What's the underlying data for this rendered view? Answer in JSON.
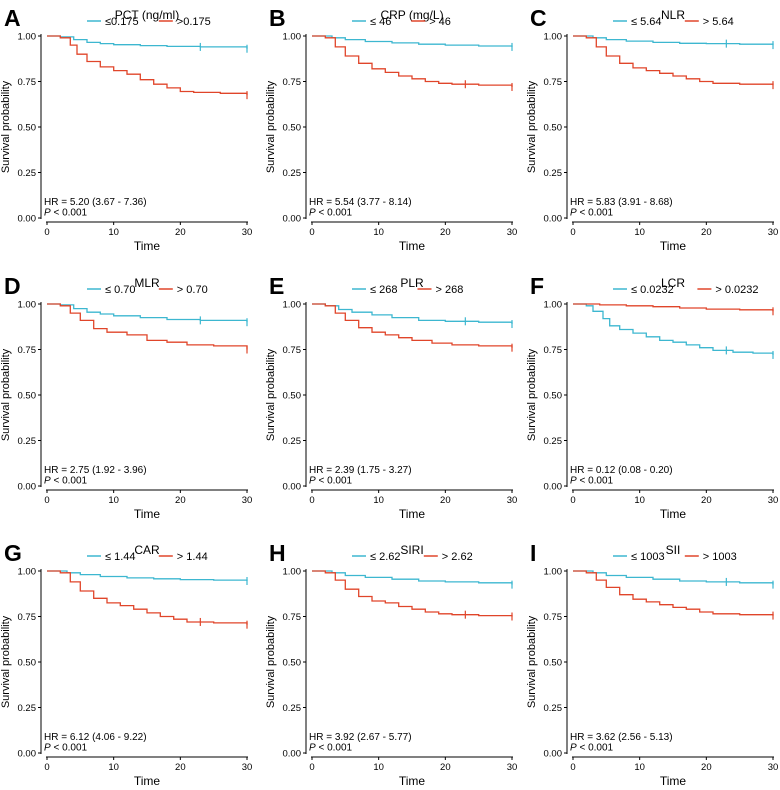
{
  "colors": {
    "low": "#3DB7D0",
    "high": "#E0452A"
  },
  "common": {
    "xlabel": "Time",
    "ylabel": "Survival probability",
    "xticks": [
      0,
      10,
      20,
      30
    ],
    "yticks": [
      "0.00",
      "0.25",
      "0.50",
      "0.75",
      "1.00"
    ],
    "p_letter": "P",
    "p_rest": " < 0.001"
  },
  "chart_data": [
    {
      "letter": "A",
      "type": "line",
      "title": "PCT (ng/ml)",
      "xlim": [
        0,
        30
      ],
      "ylim": [
        0,
        1
      ],
      "series": [
        {
          "name": "≤0.175",
          "color": "low",
          "points": [
            [
              0,
              1
            ],
            [
              2,
              0.995
            ],
            [
              4,
              0.98
            ],
            [
              6,
              0.965
            ],
            [
              8,
              0.958
            ],
            [
              10,
              0.952
            ],
            [
              14,
              0.947
            ],
            [
              18,
              0.943
            ],
            [
              23,
              0.94
            ],
            [
              30,
              0.93
            ]
          ],
          "censor": [
            23,
            30
          ]
        },
        {
          "name": ">0.175",
          "color": "high",
          "points": [
            [
              0,
              1
            ],
            [
              2,
              0.99
            ],
            [
              3.5,
              0.95
            ],
            [
              4.5,
              0.9
            ],
            [
              6,
              0.86
            ],
            [
              8,
              0.83
            ],
            [
              10,
              0.81
            ],
            [
              12,
              0.79
            ],
            [
              14,
              0.76
            ],
            [
              16,
              0.735
            ],
            [
              18,
              0.715
            ],
            [
              20,
              0.695
            ],
            [
              22,
              0.69
            ],
            [
              26,
              0.685
            ],
            [
              30,
              0.675
            ]
          ],
          "censor": [
            30
          ]
        }
      ],
      "annotation": "HR = 5.20 (3.67 -  7.36)"
    },
    {
      "letter": "B",
      "type": "line",
      "title": "CRP (mg/L)",
      "xlim": [
        0,
        30
      ],
      "ylim": [
        0,
        1
      ],
      "series": [
        {
          "name": "≤ 46",
          "color": "low",
          "points": [
            [
              0,
              1
            ],
            [
              3,
              0.99
            ],
            [
              5,
              0.98
            ],
            [
              8,
              0.97
            ],
            [
              12,
              0.962
            ],
            [
              16,
              0.955
            ],
            [
              20,
              0.95
            ],
            [
              25,
              0.945
            ],
            [
              30,
              0.94
            ]
          ],
          "censor": [
            30
          ]
        },
        {
          "name": "> 46",
          "color": "high",
          "points": [
            [
              0,
              1
            ],
            [
              2,
              0.99
            ],
            [
              3.5,
              0.94
            ],
            [
              5,
              0.89
            ],
            [
              7,
              0.85
            ],
            [
              9,
              0.82
            ],
            [
              11,
              0.8
            ],
            [
              13,
              0.78
            ],
            [
              15,
              0.765
            ],
            [
              17,
              0.75
            ],
            [
              19,
              0.74
            ],
            [
              21,
              0.735
            ],
            [
              25,
              0.73
            ],
            [
              30,
              0.72
            ]
          ],
          "censor": [
            23,
            30
          ]
        }
      ],
      "annotation": "HR = 5.54 (3.77 -  8.14)"
    },
    {
      "letter": "C",
      "type": "line",
      "title": "NLR",
      "xlim": [
        0,
        30
      ],
      "ylim": [
        0,
        1
      ],
      "series": [
        {
          "name": "≤ 5.64",
          "color": "low",
          "points": [
            [
              0,
              1
            ],
            [
              3,
              0.99
            ],
            [
              5,
              0.98
            ],
            [
              8,
              0.972
            ],
            [
              12,
              0.965
            ],
            [
              16,
              0.96
            ],
            [
              20,
              0.958
            ],
            [
              25,
              0.955
            ],
            [
              30,
              0.95
            ]
          ],
          "censor": [
            23,
            30
          ]
        },
        {
          "name": "> 5.64",
          "color": "high",
          "points": [
            [
              0,
              1
            ],
            [
              2,
              0.99
            ],
            [
              3.5,
              0.94
            ],
            [
              5,
              0.89
            ],
            [
              7,
              0.85
            ],
            [
              9,
              0.825
            ],
            [
              11,
              0.81
            ],
            [
              13,
              0.795
            ],
            [
              15,
              0.78
            ],
            [
              17,
              0.765
            ],
            [
              19,
              0.75
            ],
            [
              21,
              0.74
            ],
            [
              25,
              0.735
            ],
            [
              30,
              0.73
            ]
          ],
          "censor": [
            30
          ]
        }
      ],
      "annotation": "HR = 5.83 (3.91 -  8.68)"
    },
    {
      "letter": "D",
      "type": "line",
      "title": "MLR",
      "xlim": [
        0,
        30
      ],
      "ylim": [
        0,
        1
      ],
      "series": [
        {
          "name": "≤ 0.70",
          "color": "low",
          "points": [
            [
              0,
              1
            ],
            [
              2,
              0.995
            ],
            [
              4,
              0.975
            ],
            [
              6,
              0.955
            ],
            [
              8,
              0.945
            ],
            [
              10,
              0.935
            ],
            [
              14,
              0.925
            ],
            [
              18,
              0.915
            ],
            [
              23,
              0.91
            ],
            [
              30,
              0.9
            ]
          ],
          "censor": [
            23,
            30
          ]
        },
        {
          "name": "> 0.70",
          "color": "high",
          "points": [
            [
              0,
              1
            ],
            [
              2,
              0.99
            ],
            [
              3.5,
              0.95
            ],
            [
              5,
              0.91
            ],
            [
              7,
              0.865
            ],
            [
              9,
              0.845
            ],
            [
              12,
              0.83
            ],
            [
              15,
              0.8
            ],
            [
              18,
              0.79
            ],
            [
              21,
              0.775
            ],
            [
              25,
              0.77
            ],
            [
              30,
              0.75
            ]
          ],
          "censor": [
            30
          ]
        }
      ],
      "annotation": "HR = 2.75 (1.92 -  3.96)"
    },
    {
      "letter": "E",
      "type": "line",
      "title": "PLR",
      "xlim": [
        0,
        30
      ],
      "ylim": [
        0,
        1
      ],
      "series": [
        {
          "name": "≤ 268",
          "color": "low",
          "points": [
            [
              0,
              1
            ],
            [
              2,
              0.99
            ],
            [
              4,
              0.97
            ],
            [
              6,
              0.955
            ],
            [
              9,
              0.94
            ],
            [
              12,
              0.925
            ],
            [
              16,
              0.91
            ],
            [
              20,
              0.905
            ],
            [
              25,
              0.9
            ],
            [
              30,
              0.89
            ]
          ],
          "censor": [
            23,
            30
          ]
        },
        {
          "name": "> 268",
          "color": "high",
          "points": [
            [
              0,
              1
            ],
            [
              2,
              0.99
            ],
            [
              3.5,
              0.95
            ],
            [
              5,
              0.91
            ],
            [
              7,
              0.87
            ],
            [
              9,
              0.845
            ],
            [
              11,
              0.83
            ],
            [
              13,
              0.815
            ],
            [
              15,
              0.8
            ],
            [
              18,
              0.785
            ],
            [
              21,
              0.775
            ],
            [
              25,
              0.77
            ],
            [
              30,
              0.76
            ]
          ],
          "censor": [
            30
          ]
        }
      ],
      "annotation": "HR = 2.39 (1.75 -  3.27)"
    },
    {
      "letter": "F",
      "type": "line",
      "title": "LCR",
      "xlim": [
        0,
        30
      ],
      "ylim": [
        0,
        1
      ],
      "series": [
        {
          "name": "≤ 0.0232",
          "color": "low",
          "points": [
            [
              0,
              1
            ],
            [
              2,
              0.99
            ],
            [
              3,
              0.96
            ],
            [
              4.5,
              0.92
            ],
            [
              5.5,
              0.88
            ],
            [
              7,
              0.86
            ],
            [
              9,
              0.84
            ],
            [
              11,
              0.82
            ],
            [
              13,
              0.8
            ],
            [
              15,
              0.79
            ],
            [
              17,
              0.775
            ],
            [
              19,
              0.76
            ],
            [
              21,
              0.745
            ],
            [
              24,
              0.735
            ],
            [
              27,
              0.73
            ],
            [
              30,
              0.72
            ]
          ],
          "censor": [
            23,
            30
          ]
        },
        {
          "name": "> 0.0232",
          "color": "high",
          "points": [
            [
              0,
              1
            ],
            [
              4,
              0.995
            ],
            [
              8,
              0.99
            ],
            [
              12,
              0.985
            ],
            [
              16,
              0.978
            ],
            [
              20,
              0.972
            ],
            [
              25,
              0.968
            ],
            [
              30,
              0.96
            ]
          ],
          "censor": [
            30
          ]
        }
      ],
      "annotation": "HR = 0.12 (0.08 -  0.20)"
    },
    {
      "letter": "G",
      "type": "line",
      "title": "CAR",
      "xlim": [
        0,
        30
      ],
      "ylim": [
        0,
        1
      ],
      "series": [
        {
          "name": "≤ 1.44",
          "color": "low",
          "points": [
            [
              0,
              1
            ],
            [
              3,
              0.99
            ],
            [
              5,
              0.98
            ],
            [
              8,
              0.97
            ],
            [
              12,
              0.962
            ],
            [
              16,
              0.957
            ],
            [
              20,
              0.953
            ],
            [
              25,
              0.95
            ],
            [
              30,
              0.945
            ]
          ],
          "censor": [
            30
          ]
        },
        {
          "name": "> 1.44",
          "color": "high",
          "points": [
            [
              0,
              1
            ],
            [
              2,
              0.99
            ],
            [
              3.5,
              0.94
            ],
            [
              5,
              0.89
            ],
            [
              7,
              0.85
            ],
            [
              9,
              0.825
            ],
            [
              11,
              0.81
            ],
            [
              13,
              0.79
            ],
            [
              15,
              0.77
            ],
            [
              17,
              0.75
            ],
            [
              19,
              0.735
            ],
            [
              21,
              0.72
            ],
            [
              25,
              0.715
            ],
            [
              30,
              0.705
            ]
          ],
          "censor": [
            23,
            30
          ]
        }
      ],
      "annotation": "HR = 6.12 (4.06 -  9.22)"
    },
    {
      "letter": "H",
      "type": "line",
      "title": "SIRI",
      "xlim": [
        0,
        30
      ],
      "ylim": [
        0,
        1
      ],
      "series": [
        {
          "name": "≤ 2.62",
          "color": "low",
          "points": [
            [
              0,
              1
            ],
            [
              3,
              0.99
            ],
            [
              5,
              0.975
            ],
            [
              8,
              0.965
            ],
            [
              12,
              0.955
            ],
            [
              16,
              0.945
            ],
            [
              20,
              0.94
            ],
            [
              25,
              0.935
            ],
            [
              30,
              0.925
            ]
          ],
          "censor": [
            30
          ]
        },
        {
          "name": "> 2.62",
          "color": "high",
          "points": [
            [
              0,
              1
            ],
            [
              2,
              0.99
            ],
            [
              3.5,
              0.95
            ],
            [
              5,
              0.9
            ],
            [
              7,
              0.86
            ],
            [
              9,
              0.835
            ],
            [
              11,
              0.825
            ],
            [
              13,
              0.805
            ],
            [
              15,
              0.79
            ],
            [
              17,
              0.775
            ],
            [
              19,
              0.765
            ],
            [
              21,
              0.76
            ],
            [
              25,
              0.755
            ],
            [
              30,
              0.75
            ]
          ],
          "censor": [
            23,
            30
          ]
        }
      ],
      "annotation": "HR = 3.92 (2.67 -  5.77)"
    },
    {
      "letter": "I",
      "type": "line",
      "title": "SII",
      "xlim": [
        0,
        30
      ],
      "ylim": [
        0,
        1
      ],
      "series": [
        {
          "name": "≤ 1003",
          "color": "low",
          "points": [
            [
              0,
              1
            ],
            [
              3,
              0.99
            ],
            [
              5,
              0.975
            ],
            [
              8,
              0.965
            ],
            [
              12,
              0.955
            ],
            [
              16,
              0.945
            ],
            [
              20,
              0.94
            ],
            [
              25,
              0.935
            ],
            [
              30,
              0.925
            ]
          ],
          "censor": [
            23,
            30
          ]
        },
        {
          "name": "> 1003",
          "color": "high",
          "points": [
            [
              0,
              1
            ],
            [
              2,
              0.99
            ],
            [
              3.5,
              0.95
            ],
            [
              5,
              0.91
            ],
            [
              7,
              0.87
            ],
            [
              9,
              0.845
            ],
            [
              11,
              0.83
            ],
            [
              13,
              0.815
            ],
            [
              15,
              0.8
            ],
            [
              17,
              0.79
            ],
            [
              19,
              0.775
            ],
            [
              21,
              0.765
            ],
            [
              25,
              0.76
            ],
            [
              30,
              0.755
            ]
          ],
          "censor": [
            30
          ]
        }
      ],
      "annotation": "HR = 3.62 (2.56 -  5.13)"
    }
  ]
}
